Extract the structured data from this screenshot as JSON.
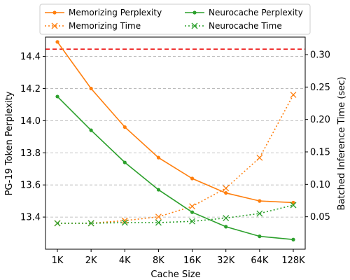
{
  "chart_data": {
    "type": "line",
    "xlabel": "Cache Size",
    "ylabel_left": "PG-19 Token Perplexity",
    "ylabel_right": "Batched Inference Time (sec)",
    "categories": [
      "1K",
      "2K",
      "4K",
      "8K",
      "16K",
      "32K",
      "64K",
      "128K"
    ],
    "ylim_left": [
      13.2,
      14.52
    ],
    "ylim_right": [
      0.0,
      0.327
    ],
    "yticks_left": [
      "13.4",
      "13.6",
      "13.8",
      "14.0",
      "14.2",
      "14.4"
    ],
    "yticks_left_values": [
      13.4,
      13.6,
      13.8,
      14.0,
      14.2,
      14.4
    ],
    "yticks_right": [
      "0.05",
      "0.10",
      "0.15",
      "0.20",
      "0.25",
      "0.30"
    ],
    "yticks_right_values": [
      0.05,
      0.1,
      0.15,
      0.2,
      0.25,
      0.3
    ],
    "grid": "horizontal dashed",
    "legend_placement": "top, above plot, 2 columns",
    "reference_line": {
      "axis": "left",
      "value": 14.445,
      "color": "#ee1111",
      "style": "dashed"
    },
    "series": [
      {
        "name": "Memorizing Perplexity",
        "axis": "left",
        "color": "#ff7f0e",
        "style": "solid",
        "marker": "dot",
        "values": [
          14.49,
          14.2,
          13.96,
          13.77,
          13.64,
          13.55,
          13.5,
          13.49
        ]
      },
      {
        "name": "Memorizing Time",
        "axis": "right",
        "color": "#ff7f0e",
        "style": "dotted",
        "marker": "x",
        "values": [
          0.04,
          0.04,
          0.044,
          0.05,
          0.066,
          0.094,
          0.141,
          0.238
        ]
      },
      {
        "name": "Neurocache Perplexity",
        "axis": "left",
        "color": "#2ca02c",
        "style": "solid",
        "marker": "dot",
        "values": [
          14.15,
          13.94,
          13.74,
          13.57,
          13.43,
          13.34,
          13.28,
          13.26
        ]
      },
      {
        "name": "Neurocache Time",
        "axis": "right",
        "color": "#2ca02c",
        "style": "dotted",
        "marker": "x",
        "values": [
          0.04,
          0.04,
          0.041,
          0.041,
          0.043,
          0.048,
          0.055,
          0.068
        ]
      }
    ]
  }
}
